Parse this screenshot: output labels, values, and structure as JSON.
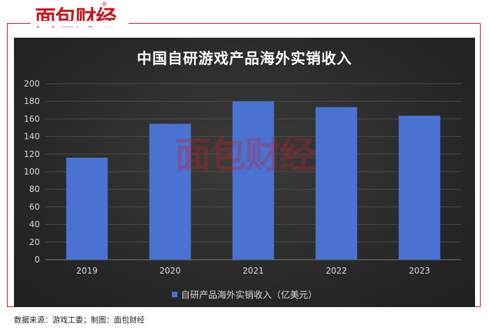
{
  "brand": {
    "logo_text": "面包财经",
    "registered_mark": "®",
    "accent_color": "#c8161d"
  },
  "source_note": "数据来源：游戏工委；制图：面包财经",
  "chart_data": {
    "type": "bar",
    "title": "中国自研游戏产品海外实销收入",
    "categories": [
      "2019",
      "2020",
      "2021",
      "2022",
      "2023"
    ],
    "series": [
      {
        "name": "自研产品海外实销收入（亿美元）",
        "values": [
          115.95,
          154.5,
          180.13,
          173.46,
          163.66
        ],
        "color": "#4a72d2"
      }
    ],
    "ylim": [
      0,
      200
    ],
    "yticks": [
      0,
      20,
      40,
      60,
      80,
      100,
      120,
      140,
      160,
      180,
      200
    ],
    "grid": true,
    "legend_position": "bottom",
    "background": "#2b2b2b"
  }
}
